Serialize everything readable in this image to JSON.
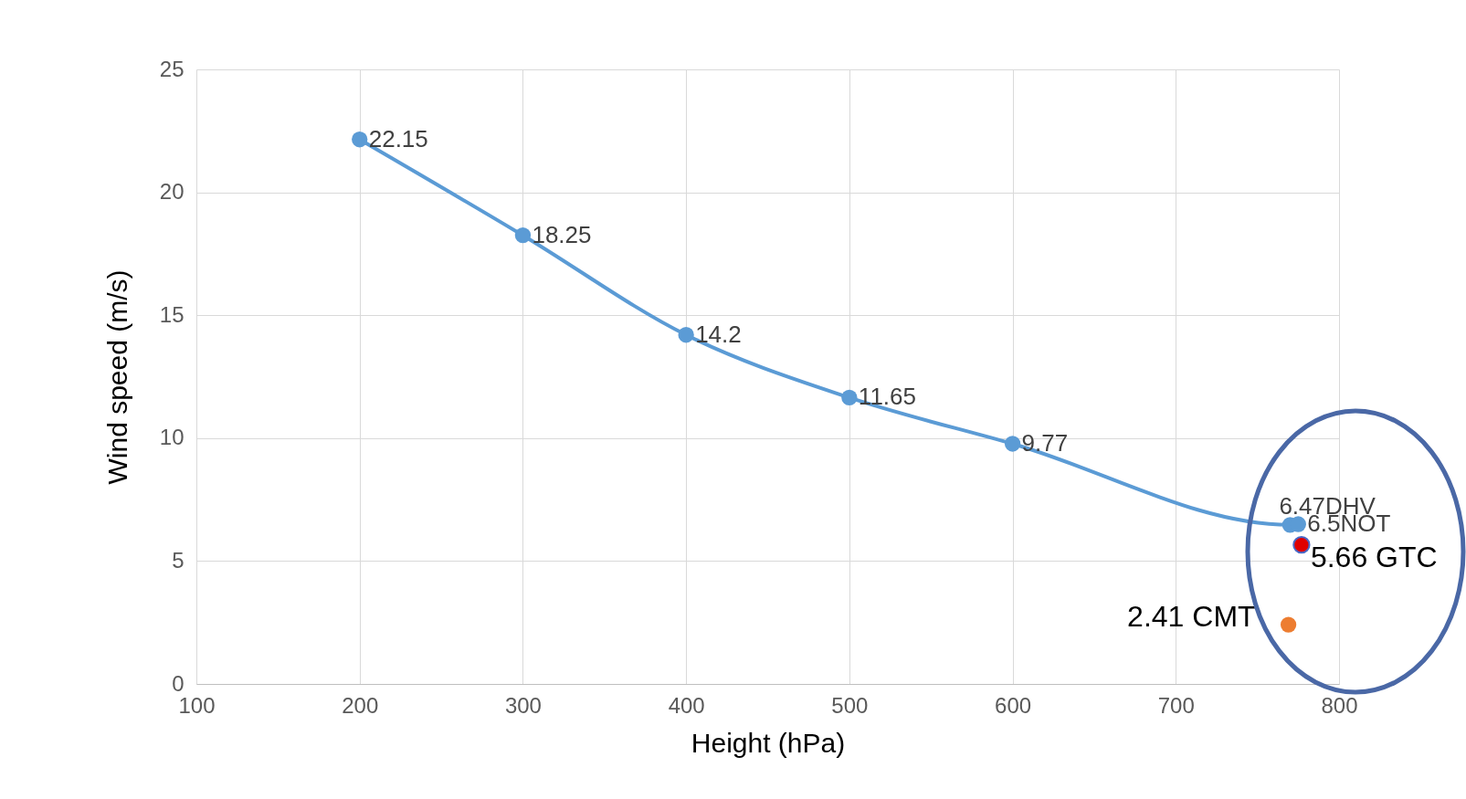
{
  "chart_data": {
    "type": "line",
    "xlabel": "Height (hPa)",
    "ylabel": "Wind speed (m/s)",
    "xlim": [
      100,
      800
    ],
    "xticks": [
      100,
      200,
      300,
      400,
      500,
      600,
      700,
      800
    ],
    "ylim": [
      0,
      25
    ],
    "yticks": [
      0,
      5,
      10,
      15,
      20,
      25
    ],
    "grid": true,
    "marker": "circle",
    "series": [
      {
        "color": "#5b9bd5",
        "x": [
          200,
          300,
          400,
          500,
          600,
          770,
          775
        ],
        "values": [
          22.15,
          18.25,
          14.2,
          11.65,
          9.77,
          6.47,
          6.5
        ],
        "value_labels": [
          "22.15",
          "18.25",
          "14.2",
          "11.65",
          "9.77",
          "6.47DHV",
          "6.5NOT"
        ]
      },
      {
        "type": "scatter",
        "color": "#e00000",
        "x": [
          777
        ],
        "values": [
          5.66
        ],
        "value_labels": [
          "5.66 GTC"
        ]
      },
      {
        "type": "scatter",
        "color": "#ed7d31",
        "x": [
          769
        ],
        "values": [
          2.41
        ],
        "value_labels": [
          "2.41 CMT"
        ]
      }
    ]
  }
}
